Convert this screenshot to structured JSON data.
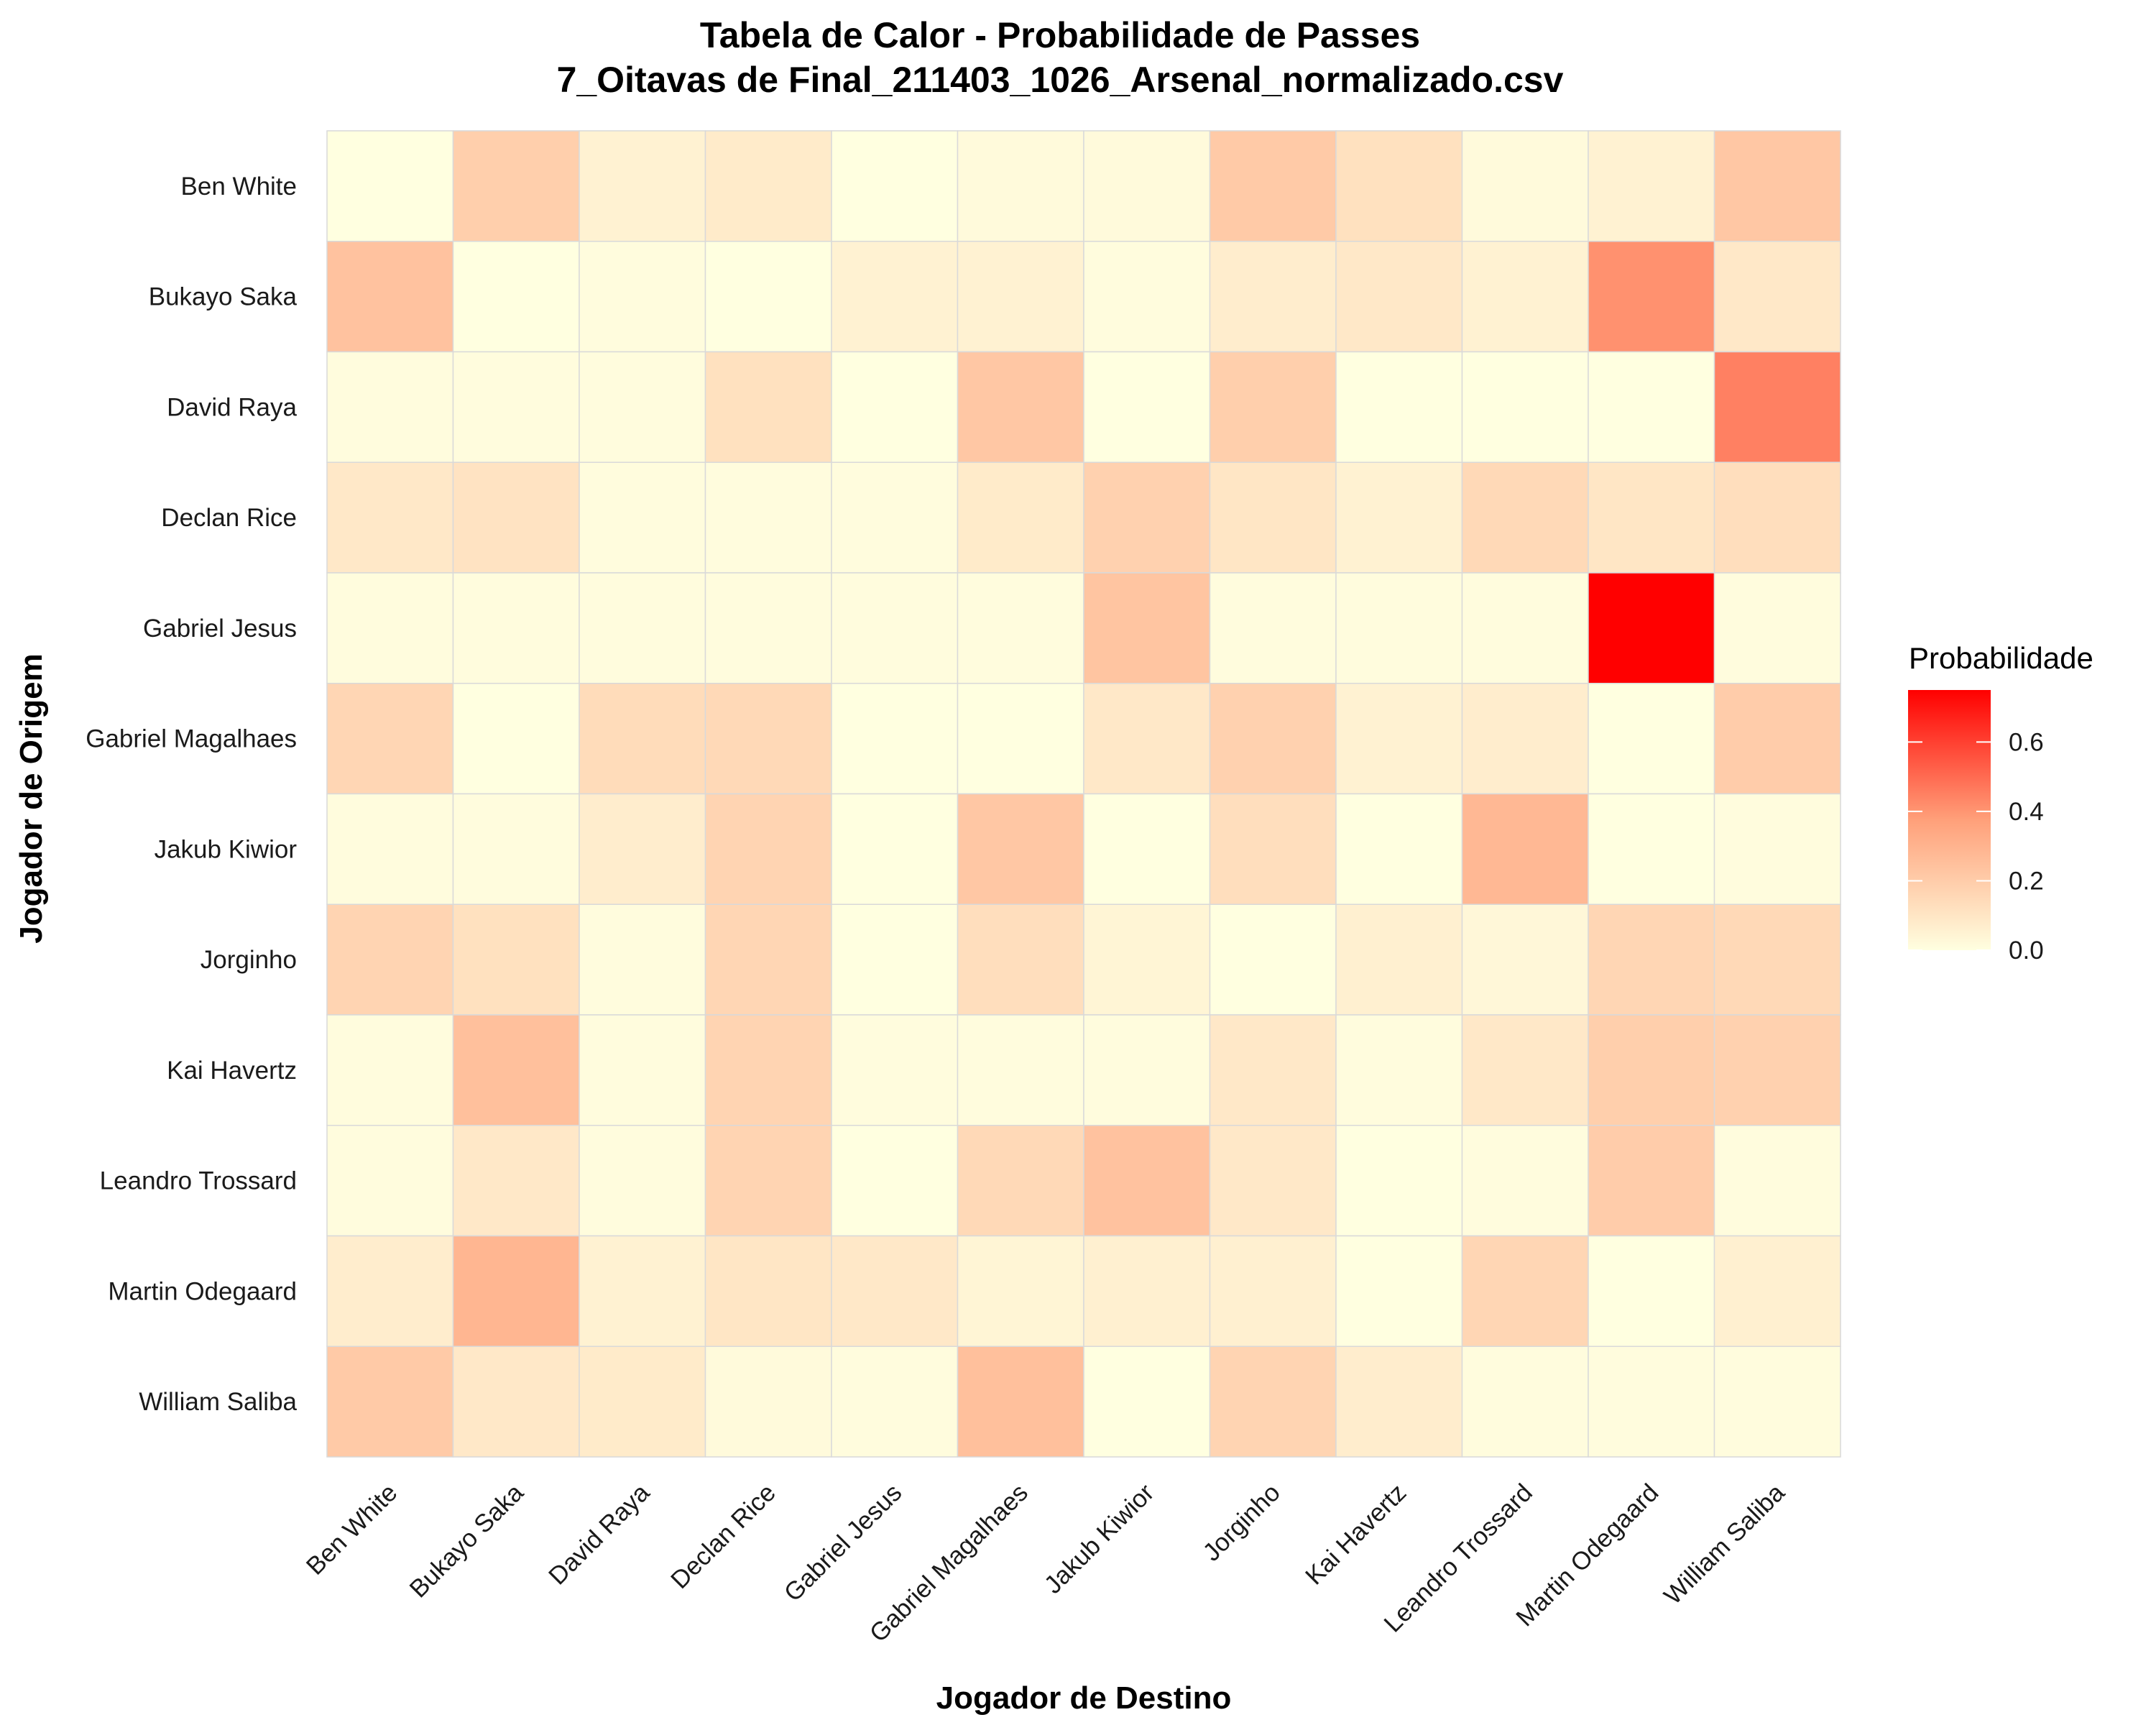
{
  "chart_data": {
    "type": "heatmap",
    "title": "Tabela de Calor - Probabilidade de Passes",
    "subtitle": "7_Oitavas de Final_211403_1026_Arsenal_normalizado.csv",
    "xlabel": "Jogador de Destino",
    "ylabel": "Jogador de Origem",
    "x_categories": [
      "Ben White",
      "Bukayo Saka",
      "David Raya",
      "Declan Rice",
      "Gabriel Jesus",
      "Gabriel Magalhaes",
      "Jakub Kiwior",
      "Jorginho",
      "Kai Havertz",
      "Leandro Trossard",
      "Martin Odegaard",
      "William Saliba"
    ],
    "y_categories": [
      "Ben White",
      "Bukayo Saka",
      "David Raya",
      "Declan Rice",
      "Gabriel Jesus",
      "Gabriel Magalhaes",
      "Jakub Kiwior",
      "Jorginho",
      "Kai Havertz",
      "Leandro Trossard",
      "Martin Odegaard",
      "William Saliba"
    ],
    "values": [
      [
        0.0,
        0.19,
        0.05,
        0.08,
        0.0,
        0.02,
        0.02,
        0.21,
        0.12,
        0.02,
        0.05,
        0.22
      ],
      [
        0.24,
        0.0,
        0.01,
        0.0,
        0.05,
        0.05,
        0.01,
        0.07,
        0.09,
        0.05,
        0.41,
        0.09
      ],
      [
        0.01,
        0.01,
        0.01,
        0.12,
        0.0,
        0.22,
        0.0,
        0.19,
        0.0,
        0.0,
        0.0,
        0.45
      ],
      [
        0.09,
        0.11,
        0.01,
        0.01,
        0.01,
        0.08,
        0.18,
        0.1,
        0.05,
        0.15,
        0.1,
        0.13
      ],
      [
        0.01,
        0.01,
        0.01,
        0.01,
        0.01,
        0.01,
        0.23,
        0.01,
        0.01,
        0.01,
        0.75,
        0.01
      ],
      [
        0.16,
        0.0,
        0.14,
        0.15,
        0.0,
        0.0,
        0.09,
        0.18,
        0.05,
        0.07,
        0.0,
        0.2
      ],
      [
        0.01,
        0.01,
        0.07,
        0.17,
        0.0,
        0.22,
        0.0,
        0.13,
        0.0,
        0.28,
        0.0,
        0.01
      ],
      [
        0.17,
        0.12,
        0.01,
        0.16,
        0.0,
        0.13,
        0.04,
        0.0,
        0.06,
        0.03,
        0.16,
        0.15
      ],
      [
        0.01,
        0.25,
        0.01,
        0.17,
        0.01,
        0.01,
        0.01,
        0.09,
        0.01,
        0.09,
        0.19,
        0.18
      ],
      [
        0.01,
        0.09,
        0.01,
        0.17,
        0.0,
        0.15,
        0.24,
        0.09,
        0.0,
        0.01,
        0.2,
        0.01
      ],
      [
        0.07,
        0.29,
        0.05,
        0.1,
        0.09,
        0.04,
        0.06,
        0.06,
        0.0,
        0.16,
        0.0,
        0.06
      ],
      [
        0.21,
        0.09,
        0.08,
        0.02,
        0.01,
        0.25,
        0.0,
        0.17,
        0.07,
        0.01,
        0.01,
        0.01
      ]
    ],
    "colorscale": {
      "low": "#ffffe0",
      "mid": "#ffa07a",
      "high": "#ff0000",
      "min": 0,
      "max": 0.75
    },
    "legend": {
      "title": "Probabilidade",
      "ticks": [
        "0.0",
        "0.2",
        "0.4",
        "0.6"
      ],
      "tick_values": [
        0,
        0.2,
        0.4,
        0.6
      ],
      "placement": "right"
    },
    "grid": true
  }
}
